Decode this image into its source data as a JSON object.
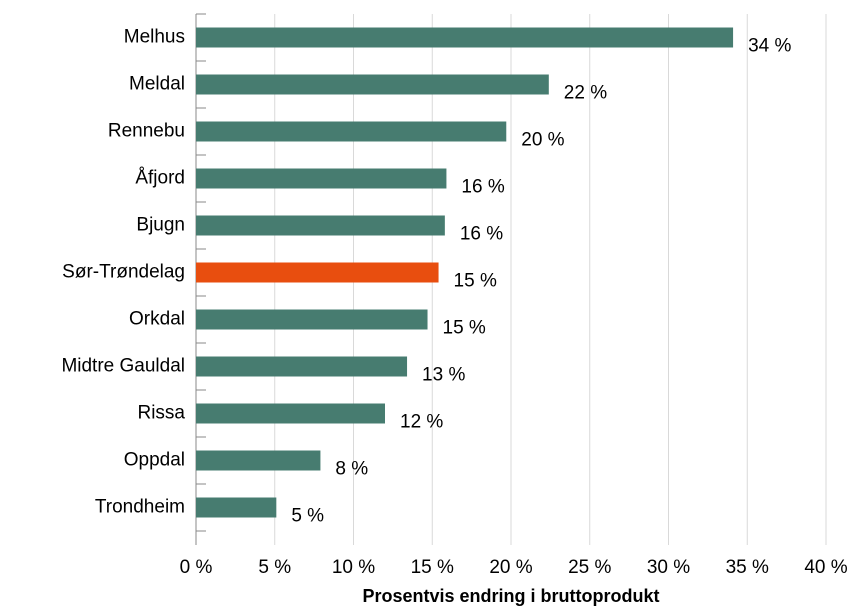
{
  "chart_data": {
    "type": "bar",
    "orientation": "horizontal",
    "x_label": "Prosentvis endring i bruttoprodukt",
    "categories": [
      "Melhus",
      "Meldal",
      "Rennebu",
      "Åfjord",
      "Bjugn",
      "Sør-Trøndelag",
      "Orkdal",
      "Midtre Gauldal",
      "Rissa",
      "Oppdal",
      "Trondheim"
    ],
    "values": [
      34.1,
      22.4,
      19.7,
      15.9,
      15.8,
      15.4,
      14.7,
      13.4,
      12.0,
      7.9,
      5.1
    ],
    "value_labels": [
      "34 %",
      "22 %",
      "20 %",
      "16 %",
      "16 %",
      "15 %",
      "15 %",
      "13 %",
      "12 %",
      "8 %",
      "5 %"
    ],
    "colors": [
      "#477c70",
      "#477c70",
      "#477c70",
      "#477c70",
      "#477c70",
      "#e84e0f",
      "#477c70",
      "#477c70",
      "#477c70",
      "#477c70",
      "#477c70"
    ],
    "xlim": [
      0,
      40
    ],
    "xticks": [
      {
        "value": 0,
        "label": "0 %"
      },
      {
        "value": 5,
        "label": "5 %"
      },
      {
        "value": 10,
        "label": "10 %"
      },
      {
        "value": 15,
        "label": "15 %"
      },
      {
        "value": 20,
        "label": "20 %"
      },
      {
        "value": 25,
        "label": "25 %"
      },
      {
        "value": 30,
        "label": "30 %"
      },
      {
        "value": 35,
        "label": "35 %"
      },
      {
        "value": 40,
        "label": "40 %"
      }
    ],
    "grid": true
  }
}
